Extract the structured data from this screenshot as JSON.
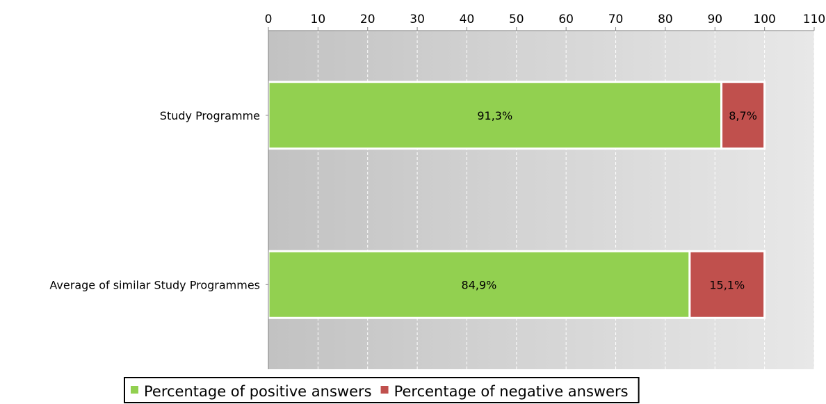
{
  "chart_data": {
    "type": "bar",
    "orientation": "horizontal",
    "stacked": true,
    "categories": [
      "Study Programme",
      "Average of similar Study Programmes"
    ],
    "series": [
      {
        "name": "Percentage of positive answers",
        "values": [
          91.3,
          84.9
        ],
        "labels": [
          "91,3%",
          "84,9%"
        ],
        "color": "#92d050"
      },
      {
        "name": "Percentage of negative answers",
        "values": [
          8.7,
          15.1
        ],
        "labels": [
          "8,7%",
          "15,1%"
        ],
        "color": "#c0504d"
      }
    ],
    "xlim": [
      0,
      110
    ],
    "xticks": [
      0,
      10,
      20,
      30,
      40,
      50,
      60,
      70,
      80,
      90,
      100,
      110
    ],
    "xtick_labels": [
      "0",
      "10",
      "20",
      "30",
      "40",
      "50",
      "60",
      "70",
      "80",
      "90",
      "100",
      "110"
    ],
    "x_axis_position": "top",
    "grid": true,
    "background": "gradient-gray",
    "legend": {
      "position": "bottom",
      "framed": true
    },
    "title": "",
    "xlabel": "",
    "ylabel": ""
  }
}
